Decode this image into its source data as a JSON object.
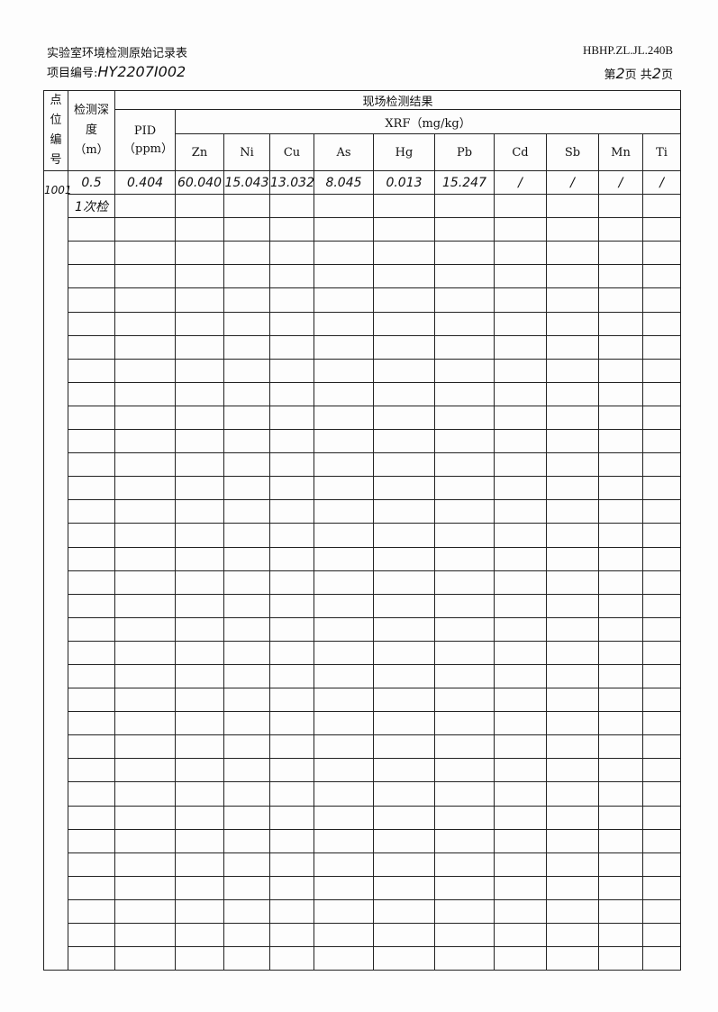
{
  "header": {
    "title": "实验室环境检测原始记录表",
    "form_code": "HBHP.ZL.JL.240B",
    "project_label": "项目编号:",
    "project_no": "HY2207I002",
    "page_prefix": "第",
    "page_current": "2",
    "page_mid": "页 共",
    "page_total": "2",
    "page_suffix": "页"
  },
  "table": {
    "col_point": "点位编号",
    "col_depth": "检测深度（m）",
    "group_title": "现场检测结果",
    "xrf_title": "XRF（mg/kg）",
    "pid": "PID（ppm）",
    "elements": [
      "Zn",
      "Ni",
      "Cu",
      "As",
      "Hg",
      "Pb",
      "Cd",
      "Sb",
      "Mn",
      "Ti"
    ],
    "point_id": "1001",
    "rows": [
      {
        "depth": "0.5",
        "pid": "0.404",
        "values": [
          "60.040",
          "15.043",
          "13.032",
          "8.045",
          "0.013",
          "15.247",
          "/",
          "/",
          "/",
          "/"
        ]
      },
      {
        "depth": "1次检",
        "pid": "",
        "values": [
          "",
          "",
          "",
          "",
          "",
          "",
          "",
          "",
          "",
          ""
        ]
      }
    ],
    "total_rows": 34
  }
}
